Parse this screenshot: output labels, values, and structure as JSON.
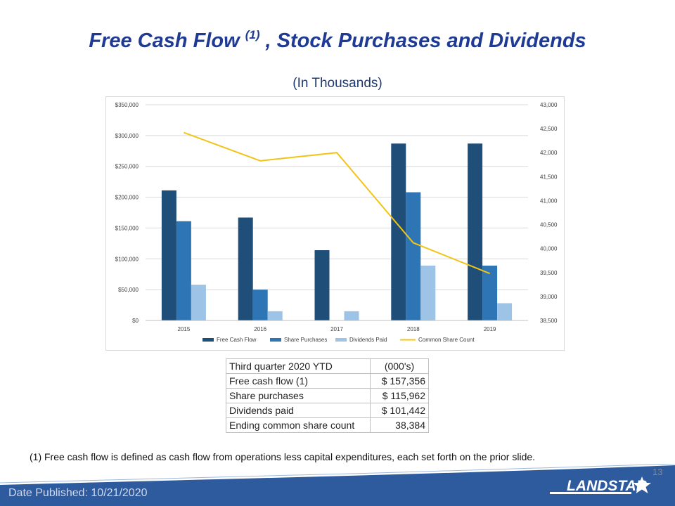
{
  "slide": {
    "title_main": "Free Cash Flow ",
    "title_sup": "(1)",
    "title_rest": " , Stock Purchases and Dividends",
    "subtitle": "(In Thousands)",
    "footnote": "(1)  Free cash flow is defined as cash flow from operations less capital expenditures, each set forth on the prior slide.",
    "page_number": "13",
    "date_published": "Date Published:  10/21/2020",
    "logo_text": "LANDSTAR"
  },
  "colors": {
    "title": "#1f3a93",
    "free_cash_flow": "#1f4e79",
    "share_purchases": "#2e75b6",
    "dividends_paid": "#9dc3e6",
    "common_share_count": "#f0c419",
    "footer": "#2e5a9e"
  },
  "chart_data": {
    "type": "bar",
    "categories": [
      "2015",
      "2016",
      "2017",
      "2018",
      "2019"
    ],
    "series": [
      {
        "name": "Free Cash Flow",
        "axis": "left",
        "values": [
          211000,
          167000,
          114000,
          287000,
          287000
        ]
      },
      {
        "name": "Share Purchases",
        "axis": "left",
        "values": [
          161000,
          50000,
          0,
          208000,
          89000
        ]
      },
      {
        "name": "Dividends Paid",
        "axis": "left",
        "values": [
          58000,
          15000,
          15000,
          89000,
          28000
        ]
      },
      {
        "name": "Common Share Count",
        "axis": "right",
        "type": "line",
        "values": [
          42420,
          41830,
          42000,
          40120,
          39480
        ]
      }
    ],
    "y_left": {
      "min": 0,
      "max": 350000,
      "ticks": [
        "$0",
        "$50,000",
        "$100,000",
        "$150,000",
        "$200,000",
        "$250,000",
        "$300,000",
        "$350,000"
      ]
    },
    "y_right": {
      "min": 38500,
      "max": 43000,
      "ticks": [
        "38,500",
        "39,000",
        "39,500",
        "40,000",
        "40,500",
        "41,000",
        "41,500",
        "42,000",
        "42,500",
        "43,000"
      ]
    },
    "grid": true,
    "legend_position": "bottom"
  },
  "table": {
    "header": [
      "Third quarter 2020 YTD",
      "(000's)"
    ],
    "rows": [
      {
        "label": "Free cash flow (1)",
        "value": "$  157,356"
      },
      {
        "label": "Share purchases",
        "value": "$  115,962"
      },
      {
        "label": "Dividends paid",
        "value": "$  101,442"
      },
      {
        "label": "Ending common share count",
        "value": "38,384"
      }
    ]
  }
}
